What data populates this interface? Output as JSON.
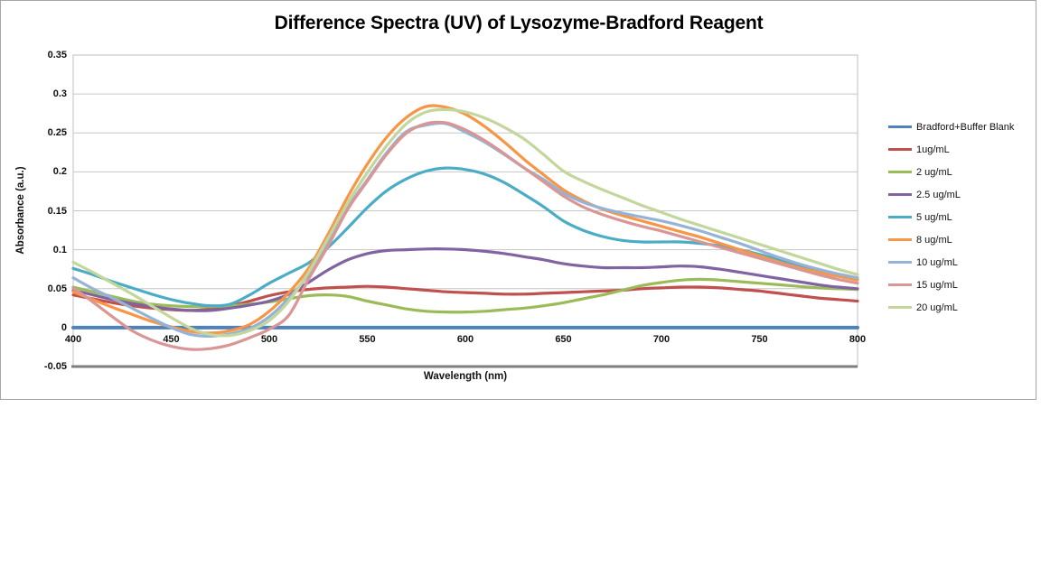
{
  "page": {
    "background": "#FFFFFF"
  },
  "chart": {
    "border_color": "#A6A6A6",
    "background": "#FFFFFF"
  },
  "chart_data": {
    "type": "line",
    "title": "Difference Spectra (UV) of Lysozyme-Bradford Reagent",
    "xlabel": "Wavelength (nm)",
    "ylabel": "Absorbance (a.u.)",
    "xlim": [
      400,
      800
    ],
    "ylim": [
      -0.05,
      0.35
    ],
    "xticks": [
      400,
      450,
      500,
      550,
      600,
      650,
      700,
      750,
      800
    ],
    "yticks": [
      0.35,
      0.3,
      0.25,
      0.2,
      0.15,
      0.1,
      0.05,
      0,
      -0.05
    ],
    "ytick_labels": [
      "0.35",
      "0.3",
      "0.25",
      "0.2",
      "0.15",
      "0.1",
      "0.05",
      "0",
      "-0.05"
    ],
    "grid": "horizontal",
    "legend_position": "right",
    "gridline_color": "#C6C6C6",
    "plot_border_color": "#BFBFBF",
    "axis_line_color": "#7F7F7F",
    "zero_axis_note": "series 'Bradford+Buffer Blank' lies flat on the 0 line",
    "x": [
      400,
      410,
      420,
      430,
      440,
      450,
      460,
      470,
      480,
      490,
      500,
      510,
      520,
      530,
      540,
      550,
      560,
      570,
      580,
      590,
      600,
      610,
      620,
      630,
      640,
      650,
      660,
      670,
      680,
      690,
      700,
      710,
      720,
      730,
      740,
      750,
      760,
      770,
      780,
      790,
      800
    ],
    "series": [
      {
        "name": "Bradford+Buffer Blank",
        "color": "#4F81BD",
        "width": 4,
        "values": [
          0,
          0,
          0,
          0,
          0,
          0,
          0,
          0,
          0,
          0,
          0,
          0,
          0,
          0,
          0,
          0,
          0,
          0,
          0,
          0,
          0,
          0,
          0,
          0,
          0,
          0,
          0,
          0,
          0,
          0,
          0,
          0,
          0,
          0,
          0,
          0,
          0,
          0,
          0,
          0,
          0
        ]
      },
      {
        "name": "1ug/mL",
        "color": "#C0504D",
        "width": 3.2,
        "values": [
          0.042,
          0.037,
          0.032,
          0.028,
          0.025,
          0.023,
          0.022,
          0.024,
          0.028,
          0.034,
          0.041,
          0.046,
          0.049,
          0.051,
          0.052,
          0.053,
          0.052,
          0.05,
          0.048,
          0.046,
          0.045,
          0.044,
          0.043,
          0.043,
          0.044,
          0.045,
          0.046,
          0.047,
          0.048,
          0.05,
          0.051,
          0.052,
          0.052,
          0.051,
          0.049,
          0.047,
          0.044,
          0.041,
          0.038,
          0.036,
          0.034
        ]
      },
      {
        "name": "2 ug/mL",
        "color": "#9BBB59",
        "width": 3.2,
        "values": [
          0.052,
          0.046,
          0.04,
          0.034,
          0.03,
          0.028,
          0.027,
          0.027,
          0.028,
          0.03,
          0.033,
          0.037,
          0.041,
          0.042,
          0.04,
          0.034,
          0.029,
          0.024,
          0.021,
          0.02,
          0.02,
          0.021,
          0.023,
          0.025,
          0.028,
          0.032,
          0.037,
          0.042,
          0.048,
          0.054,
          0.058,
          0.061,
          0.062,
          0.061,
          0.059,
          0.057,
          0.055,
          0.053,
          0.051,
          0.05,
          0.049
        ]
      },
      {
        "name": "2.5 ug/mL",
        "color": "#8064A2",
        "width": 3.2,
        "values": [
          0.048,
          0.042,
          0.036,
          0.031,
          0.027,
          0.024,
          0.022,
          0.022,
          0.025,
          0.029,
          0.034,
          0.043,
          0.058,
          0.074,
          0.087,
          0.095,
          0.099,
          0.1,
          0.101,
          0.101,
          0.1,
          0.098,
          0.095,
          0.091,
          0.087,
          0.082,
          0.079,
          0.077,
          0.077,
          0.077,
          0.078,
          0.079,
          0.078,
          0.075,
          0.071,
          0.067,
          0.063,
          0.059,
          0.055,
          0.052,
          0.05
        ]
      },
      {
        "name": "5 ug/mL",
        "color": "#4BACC6",
        "width": 3.2,
        "values": [
          0.076,
          0.068,
          0.059,
          0.051,
          0.043,
          0.036,
          0.031,
          0.028,
          0.03,
          0.042,
          0.057,
          0.07,
          0.083,
          0.103,
          0.128,
          0.154,
          0.176,
          0.191,
          0.201,
          0.205,
          0.203,
          0.197,
          0.186,
          0.171,
          0.155,
          0.137,
          0.125,
          0.117,
          0.112,
          0.11,
          0.11,
          0.11,
          0.108,
          0.105,
          0.1,
          0.094,
          0.087,
          0.08,
          0.073,
          0.067,
          0.062
        ]
      },
      {
        "name": "8 ug/mL",
        "color": "#F79646",
        "width": 3.2,
        "values": [
          0.046,
          0.036,
          0.026,
          0.017,
          0.008,
          0.001,
          -0.005,
          -0.007,
          -0.004,
          0.004,
          0.021,
          0.045,
          0.076,
          0.12,
          0.168,
          0.21,
          0.245,
          0.27,
          0.284,
          0.283,
          0.274,
          0.258,
          0.238,
          0.216,
          0.196,
          0.177,
          0.163,
          0.152,
          0.144,
          0.137,
          0.13,
          0.123,
          0.116,
          0.108,
          0.1,
          0.092,
          0.084,
          0.077,
          0.071,
          0.066,
          0.061
        ]
      },
      {
        "name": "10 ug/mL",
        "color": "#95B3D7",
        "width": 3.2,
        "values": [
          0.064,
          0.05,
          0.038,
          0.025,
          0.012,
          0.0,
          -0.009,
          -0.011,
          -0.008,
          -0.001,
          0.014,
          0.038,
          0.068,
          0.109,
          0.154,
          0.19,
          0.225,
          0.252,
          0.26,
          0.262,
          0.251,
          0.238,
          0.222,
          0.205,
          0.19,
          0.173,
          0.161,
          0.153,
          0.147,
          0.142,
          0.137,
          0.131,
          0.124,
          0.116,
          0.108,
          0.099,
          0.09,
          0.082,
          0.075,
          0.069,
          0.064
        ]
      },
      {
        "name": "15 ug/mL",
        "color": "#D99694",
        "width": 3.2,
        "values": [
          0.051,
          0.033,
          0.014,
          -0.004,
          -0.016,
          -0.024,
          -0.028,
          -0.027,
          -0.022,
          -0.013,
          -0.002,
          0.016,
          0.062,
          0.105,
          0.152,
          0.188,
          0.223,
          0.25,
          0.262,
          0.263,
          0.254,
          0.24,
          0.223,
          0.205,
          0.187,
          0.169,
          0.155,
          0.145,
          0.137,
          0.13,
          0.124,
          0.117,
          0.11,
          0.103,
          0.096,
          0.089,
          0.082,
          0.075,
          0.068,
          0.062,
          0.057
        ]
      },
      {
        "name": "20 ug/mL",
        "color": "#C3D69B",
        "width": 3.2,
        "values": [
          0.084,
          0.071,
          0.057,
          0.043,
          0.028,
          0.013,
          -0.001,
          -0.009,
          -0.01,
          -0.004,
          0.009,
          0.034,
          0.071,
          0.115,
          0.16,
          0.199,
          0.234,
          0.262,
          0.277,
          0.28,
          0.277,
          0.269,
          0.257,
          0.242,
          0.222,
          0.201,
          0.188,
          0.177,
          0.167,
          0.157,
          0.148,
          0.139,
          0.131,
          0.123,
          0.115,
          0.107,
          0.099,
          0.091,
          0.083,
          0.075,
          0.068
        ]
      }
    ]
  }
}
